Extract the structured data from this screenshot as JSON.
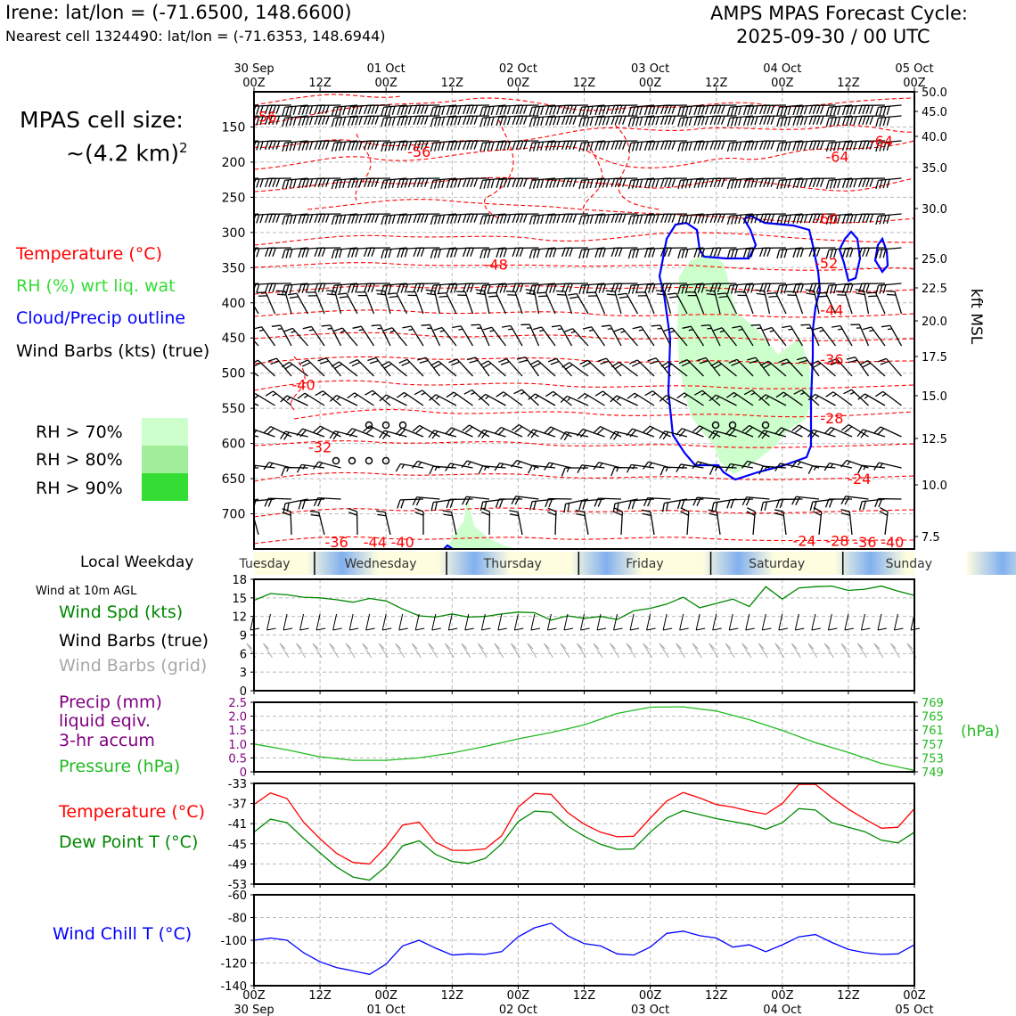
{
  "header": {
    "location_line": "Irene: lat/lon = (-71.6500, 148.6600)",
    "cell_line": "Nearest cell 1324490: lat/lon = (-71.6353, 148.6944)",
    "forecast_title_1": "AMPS MPAS Forecast Cycle:",
    "forecast_title_2": "2025-09-30 / 00 UTC"
  },
  "left_panel": {
    "cell_size_1": "MPAS cell size:",
    "cell_size_2": "~(4.2 km)",
    "cell_size_sup": "2",
    "legend_temperature": "Temperature (°C)",
    "legend_rh": "RH (%) wrt liq. wat",
    "legend_cloud": "Cloud/Precip outline",
    "legend_wind": "Wind Barbs (kts) (true)",
    "rh_levels": [
      "RH > 70%",
      "RH > 80%",
      "RH > 90%"
    ],
    "local_weekday": "Local Weekday",
    "wind_10m": "Wind at 10m AGL",
    "wind_spd": "Wind Spd (kts)",
    "wind_barbs_true": "Wind Barbs (true)",
    "wind_barbs_grid": "Wind Barbs (grid)",
    "precip_1": "Precip (mm)",
    "precip_2": "liquid eqiv.",
    "precip_3": "3-hr accum",
    "pressure": "Pressure (hPa)",
    "temp_label": "Temperature (°C)",
    "dew_label": "Dew Point T (°C)",
    "wind_chill": "Wind Chill T (°C)"
  },
  "colors": {
    "temperature": "#ff0000",
    "rh_text": "#33dd33",
    "cloud": "#0000ff",
    "wind_spd": "#008800",
    "wind_grid": "#a8a8a8",
    "precip": "#800080",
    "pressure": "#22bb22",
    "dew": "#008800",
    "wind_chill": "#0000ff",
    "rh70": "#ccffcc",
    "rh80": "#a0ee9a",
    "rh90": "#33dd33"
  },
  "time_axis": {
    "top_dates": [
      "30 Sep",
      "",
      "01 Oct",
      "",
      "02 Oct",
      "",
      "03 Oct",
      "",
      "04 Oct",
      "",
      "05 Oct"
    ],
    "hours": [
      "00Z",
      "12Z",
      "00Z",
      "12Z",
      "00Z",
      "12Z",
      "00Z",
      "12Z",
      "00Z",
      "12Z",
      "00Z"
    ],
    "bottom_dates": [
      "30 Sep",
      "",
      "01 Oct",
      "",
      "02 Oct",
      "",
      "03 Oct",
      "",
      "04 Oct",
      "",
      "05 Oct"
    ]
  },
  "weekdays": [
    "Tuesday",
    "Wednesday",
    "Thursday",
    "Friday",
    "Saturday",
    "Sunday"
  ],
  "chart_data": [
    {
      "type": "contour-profile",
      "title": "Vertical time section",
      "y_pressure_ticks": [
        150,
        200,
        250,
        300,
        350,
        400,
        450,
        500,
        550,
        600,
        650,
        700
      ],
      "y_kft_ticks": [
        "50.0",
        "45.0",
        "40.0",
        "35.0",
        "30.0",
        "25.0",
        "22.5",
        "20.0",
        "17.5",
        "15.0",
        "12.5",
        "10.0",
        "7.5"
      ],
      "y_right_label": "kft MSL",
      "ylim_hpa": [
        100,
        750
      ],
      "temperature_labels": [
        {
          "text": "-56",
          "hour": 2,
          "p": 135
        },
        {
          "text": "-56",
          "hour": 30,
          "p": 185
        },
        {
          "text": "-64",
          "hour": 114,
          "p": 170
        },
        {
          "text": "-64",
          "hour": 106,
          "p": 192
        },
        {
          "text": "-60",
          "hour": 104,
          "p": 280
        },
        {
          "text": "-52",
          "hour": 104,
          "p": 343
        },
        {
          "text": "-48",
          "hour": 44,
          "p": 345
        },
        {
          "text": "-44",
          "hour": 105,
          "p": 410
        },
        {
          "text": "-40",
          "hour": 9,
          "p": 516
        },
        {
          "text": "-36",
          "hour": 105,
          "p": 480
        },
        {
          "text": "-32",
          "hour": 12,
          "p": 605
        },
        {
          "text": "-28",
          "hour": 105,
          "p": 564
        },
        {
          "text": "-24",
          "hour": 110,
          "p": 650
        },
        {
          "text": "-36",
          "hour": 15,
          "p": 740
        },
        {
          "text": "-44",
          "hour": 22,
          "p": 740
        },
        {
          "text": "-40",
          "hour": 27,
          "p": 740
        },
        {
          "text": "-24",
          "hour": 100,
          "p": 738
        },
        {
          "text": "-28",
          "hour": 106,
          "p": 738
        },
        {
          "text": "-36",
          "hour": 111,
          "p": 740
        },
        {
          "text": "-40",
          "hour": 116,
          "p": 740
        }
      ]
    },
    {
      "type": "line",
      "title": "Wind at 10m AGL",
      "ylabel": "Wind Spd (kts)",
      "x_hours": [
        0,
        3,
        6,
        9,
        12,
        15,
        18,
        21,
        24,
        27,
        30,
        33,
        36,
        39,
        42,
        45,
        48,
        51,
        54,
        57,
        60,
        63,
        66,
        69,
        72,
        75,
        78,
        81,
        84,
        87,
        90,
        93,
        96,
        99,
        102,
        105,
        108,
        111,
        114,
        117,
        120
      ],
      "values": [
        14.6,
        15.7,
        15.5,
        15.1,
        15.0,
        14.7,
        14.3,
        14.9,
        14.5,
        13.2,
        12.1,
        11.9,
        12.4,
        11.9,
        12.0,
        12.4,
        12.7,
        12.6,
        11.4,
        12.1,
        11.7,
        12.0,
        11.5,
        12.9,
        13.3,
        14.0,
        15.1,
        13.4,
        14.1,
        14.8,
        13.6,
        16.8,
        14.8,
        16.6,
        16.8,
        16.9,
        16.2,
        16.4,
        16.9,
        16.1,
        15.4
      ],
      "yticks": [
        0,
        3,
        6,
        9,
        12,
        15,
        18
      ],
      "ylim": [
        0,
        18
      ]
    },
    {
      "type": "line",
      "title": "Pressure",
      "series": [
        {
          "name": "Pressure (hPa)",
          "x_hours": [
            0,
            6,
            12,
            18,
            24,
            30,
            36,
            42,
            48,
            54,
            60,
            66,
            72,
            78,
            84,
            90,
            96,
            102,
            108,
            114,
            120
          ],
          "values": [
            757.0,
            755.3,
            753.3,
            752.3,
            752.3,
            753.0,
            754.4,
            756.3,
            758.5,
            760.3,
            762.5,
            765.8,
            767.6,
            767.7,
            766.5,
            764.0,
            760.9,
            757.4,
            754.6,
            751.4,
            749.4
          ]
        }
      ],
      "precip_yticks": [
        "0",
        "0.5",
        "1.0",
        "1.5",
        "2.0",
        "2.5"
      ],
      "pressure_yticks": [
        "749",
        "753",
        "757",
        "761",
        "765",
        "769"
      ],
      "right_label": "(hPa)",
      "ylim": [
        749,
        769
      ]
    },
    {
      "type": "line",
      "title": "Temperature and Dew Point",
      "x_hours": [
        0,
        3,
        6,
        9,
        12,
        15,
        18,
        21,
        24,
        27,
        30,
        33,
        36,
        39,
        42,
        45,
        48,
        51,
        54,
        57,
        60,
        63,
        66,
        69,
        72,
        75,
        78,
        81,
        84,
        87,
        90,
        93,
        96,
        99,
        102,
        105,
        108,
        111,
        114,
        117,
        120
      ],
      "series": [
        {
          "name": "Temperature (°C)",
          "values": [
            -37.2,
            -34.9,
            -36.0,
            -40.7,
            -44.0,
            -46.9,
            -48.7,
            -49.0,
            -45.6,
            -41.3,
            -40.7,
            -44.7,
            -46.3,
            -46.3,
            -46.0,
            -43.4,
            -37.7,
            -35.0,
            -35.2,
            -38.8,
            -41.1,
            -42.7,
            -43.6,
            -43.5,
            -39.9,
            -36.5,
            -34.8,
            -35.9,
            -37.2,
            -37.7,
            -38.5,
            -39.1,
            -37.0,
            -33.2,
            -33.2,
            -35.8,
            -38.1,
            -40.1,
            -41.9,
            -41.7,
            -38.0
          ]
        },
        {
          "name": "Dew Point T (°C)",
          "values": [
            -42.7,
            -40.1,
            -40.8,
            -43.9,
            -46.8,
            -49.6,
            -51.6,
            -52.2,
            -49.5,
            -45.4,
            -44.4,
            -47.1,
            -48.5,
            -48.9,
            -47.9,
            -45.0,
            -40.6,
            -38.5,
            -38.7,
            -41.5,
            -43.5,
            -45.1,
            -46.1,
            -46.0,
            -42.7,
            -39.9,
            -38.4,
            -39.2,
            -40.0,
            -40.6,
            -41.2,
            -42.1,
            -40.8,
            -38.0,
            -38.3,
            -40.8,
            -41.7,
            -42.6,
            -44.3,
            -44.8,
            -42.7
          ]
        }
      ],
      "yticks": [
        -33,
        -37,
        -41,
        -45,
        -49,
        -53
      ],
      "ylim": [
        -53,
        -33
      ]
    },
    {
      "type": "line",
      "title": "Wind Chill",
      "x_hours": [
        0,
        3,
        6,
        9,
        12,
        15,
        18,
        21,
        24,
        27,
        30,
        33,
        36,
        39,
        42,
        45,
        48,
        51,
        54,
        57,
        60,
        63,
        66,
        69,
        72,
        75,
        78,
        81,
        84,
        87,
        90,
        93,
        96,
        99,
        102,
        105,
        108,
        111,
        114,
        117,
        120
      ],
      "series": [
        {
          "name": "Wind Chill T (°C)",
          "values": [
            -100.0,
            -98.0,
            -100.0,
            -111.0,
            -119.0,
            -124.0,
            -127.0,
            -130.0,
            -121.0,
            -105.0,
            -100.0,
            -107.0,
            -113.0,
            -112.0,
            -112.5,
            -110.0,
            -97.0,
            -89.0,
            -85.0,
            -96.0,
            -103.0,
            -105.0,
            -112.0,
            -113.0,
            -106.0,
            -94.0,
            -92.0,
            -96.0,
            -98.0,
            -106.0,
            -104.0,
            -110.0,
            -104.0,
            -97.0,
            -95.0,
            -102.0,
            -108.0,
            -111.0,
            -112.5,
            -112.0,
            -104.0
          ]
        }
      ],
      "yticks": [
        -60,
        -80,
        -100,
        -120,
        -140
      ],
      "ylim": [
        -140,
        -60
      ]
    }
  ]
}
